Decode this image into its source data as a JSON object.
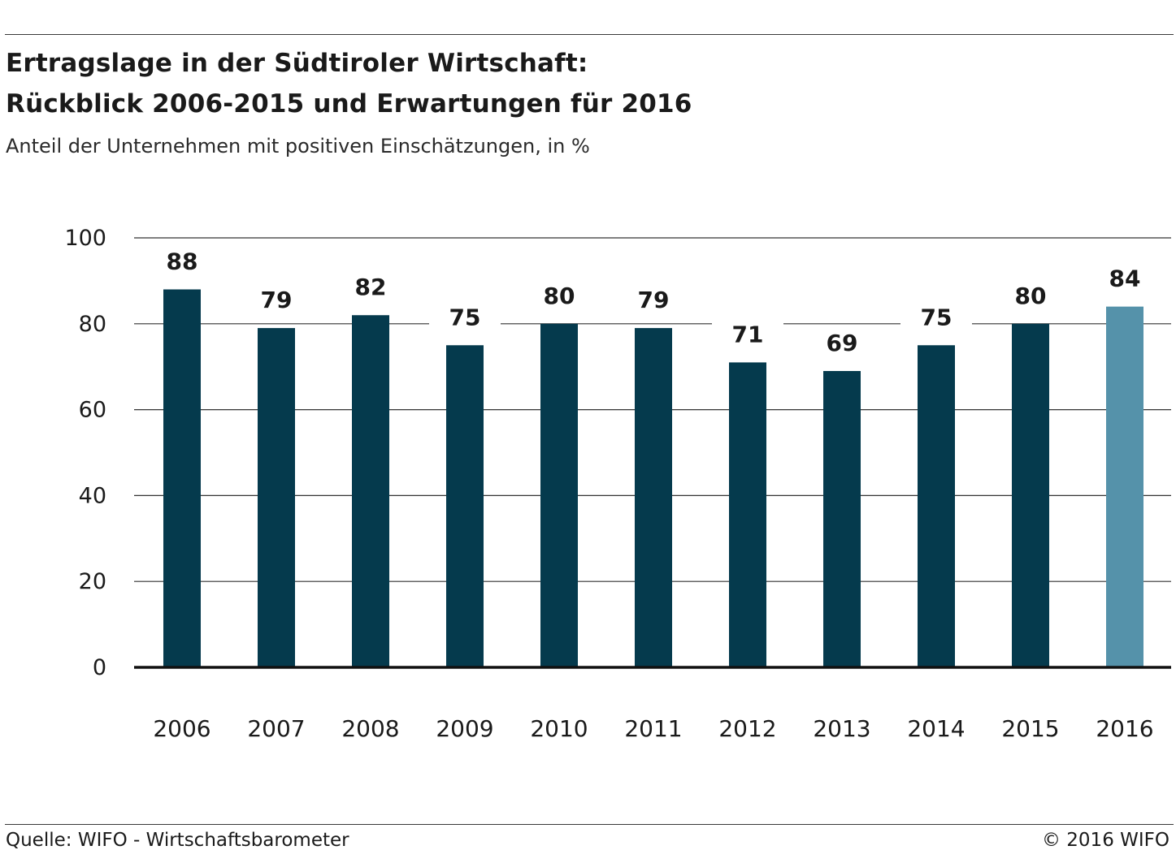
{
  "header": {
    "title_line1": "Ertragslage in der Südtiroler Wirtschaft:",
    "title_line2": "Rückblick 2006-2015 und Erwartungen für 2016",
    "subtitle": "Anteil der Unternehmen mit positiven Einschätzungen, in %"
  },
  "footer": {
    "source": "Quelle: WIFO - Wirtschaftsbarometer",
    "copyright": "© 2016 WIFO"
  },
  "chart_data": {
    "type": "bar",
    "categories": [
      "2006",
      "2007",
      "2008",
      "2009",
      "2010",
      "2011",
      "2012",
      "2013",
      "2014",
      "2015",
      "2016"
    ],
    "values": [
      88,
      79,
      82,
      75,
      80,
      79,
      71,
      69,
      75,
      80,
      84
    ],
    "ylim": [
      0,
      100
    ],
    "yticks": [
      0,
      20,
      40,
      60,
      80,
      100
    ],
    "grid": true,
    "data_labels": true,
    "colors": {
      "historical": "#053a4d",
      "expectation": "#5592aa",
      "gridline": "#333333",
      "axis": "#111111"
    },
    "highlight_category": "2016"
  }
}
